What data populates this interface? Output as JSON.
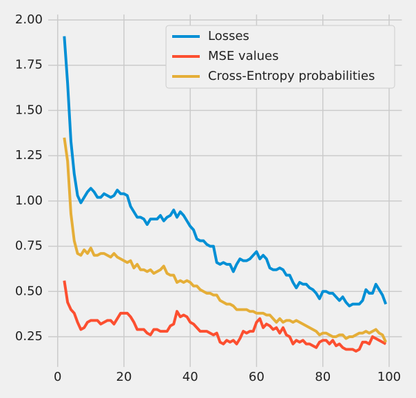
{
  "chart_data": {
    "type": "line",
    "x": [
      2,
      3,
      4,
      5,
      6,
      7,
      8,
      9,
      10,
      11,
      12,
      13,
      14,
      15,
      16,
      17,
      18,
      19,
      20,
      21,
      22,
      23,
      24,
      25,
      26,
      27,
      28,
      29,
      30,
      31,
      32,
      33,
      34,
      35,
      36,
      37,
      38,
      39,
      40,
      41,
      42,
      43,
      44,
      45,
      46,
      47,
      48,
      49,
      50,
      51,
      52,
      53,
      54,
      55,
      56,
      57,
      58,
      59,
      60,
      61,
      62,
      63,
      64,
      65,
      66,
      67,
      68,
      69,
      70,
      71,
      72,
      73,
      74,
      75,
      76,
      77,
      78,
      79,
      80,
      81,
      82,
      83,
      84,
      85,
      86,
      87,
      88,
      89,
      90,
      91,
      92,
      93,
      94,
      95,
      96,
      97,
      98,
      99
    ],
    "series": [
      {
        "name": "Losses",
        "color": "#008fd5",
        "values": [
          1.91,
          1.65,
          1.33,
          1.15,
          1.03,
          0.99,
          1.02,
          1.05,
          1.07,
          1.05,
          1.02,
          1.02,
          1.04,
          1.03,
          1.02,
          1.03,
          1.06,
          1.04,
          1.04,
          1.03,
          0.97,
          0.94,
          0.91,
          0.91,
          0.9,
          0.87,
          0.9,
          0.9,
          0.9,
          0.92,
          0.89,
          0.91,
          0.92,
          0.95,
          0.91,
          0.94,
          0.92,
          0.89,
          0.86,
          0.84,
          0.79,
          0.78,
          0.78,
          0.76,
          0.75,
          0.75,
          0.66,
          0.65,
          0.66,
          0.65,
          0.65,
          0.61,
          0.65,
          0.68,
          0.67,
          0.67,
          0.68,
          0.7,
          0.72,
          0.68,
          0.7,
          0.68,
          0.63,
          0.62,
          0.62,
          0.63,
          0.62,
          0.59,
          0.59,
          0.55,
          0.52,
          0.55,
          0.54,
          0.54,
          0.52,
          0.51,
          0.49,
          0.46,
          0.5,
          0.5,
          0.49,
          0.49,
          0.47,
          0.45,
          0.47,
          0.44,
          0.42,
          0.43,
          0.43,
          0.43,
          0.45,
          0.51,
          0.49,
          0.49,
          0.54,
          0.51,
          0.48,
          0.43
        ]
      },
      {
        "name": "MSE values",
        "color": "#fc4f30",
        "values": [
          0.56,
          0.44,
          0.4,
          0.38,
          0.33,
          0.29,
          0.3,
          0.33,
          0.34,
          0.34,
          0.34,
          0.32,
          0.33,
          0.34,
          0.34,
          0.32,
          0.35,
          0.38,
          0.38,
          0.38,
          0.36,
          0.33,
          0.29,
          0.29,
          0.29,
          0.27,
          0.26,
          0.29,
          0.29,
          0.28,
          0.28,
          0.28,
          0.31,
          0.32,
          0.39,
          0.36,
          0.37,
          0.36,
          0.33,
          0.32,
          0.3,
          0.28,
          0.28,
          0.28,
          0.27,
          0.26,
          0.27,
          0.22,
          0.21,
          0.23,
          0.22,
          0.23,
          0.21,
          0.24,
          0.28,
          0.27,
          0.28,
          0.28,
          0.33,
          0.35,
          0.3,
          0.32,
          0.31,
          0.29,
          0.3,
          0.27,
          0.3,
          0.26,
          0.25,
          0.21,
          0.23,
          0.22,
          0.23,
          0.21,
          0.21,
          0.2,
          0.19,
          0.22,
          0.23,
          0.23,
          0.21,
          0.23,
          0.2,
          0.21,
          0.19,
          0.18,
          0.18,
          0.18,
          0.17,
          0.18,
          0.22,
          0.22,
          0.21,
          0.25,
          0.24,
          0.23,
          0.22,
          0.21
        ]
      },
      {
        "name": "Cross-Entropy probabilities",
        "color": "#e5ae38",
        "values": [
          1.35,
          1.22,
          0.93,
          0.78,
          0.71,
          0.7,
          0.73,
          0.71,
          0.74,
          0.7,
          0.7,
          0.71,
          0.71,
          0.7,
          0.69,
          0.71,
          0.69,
          0.68,
          0.67,
          0.66,
          0.67,
          0.63,
          0.65,
          0.62,
          0.62,
          0.61,
          0.62,
          0.6,
          0.61,
          0.62,
          0.64,
          0.6,
          0.59,
          0.59,
          0.55,
          0.56,
          0.55,
          0.56,
          0.55,
          0.53,
          0.53,
          0.51,
          0.5,
          0.49,
          0.49,
          0.48,
          0.48,
          0.45,
          0.44,
          0.43,
          0.43,
          0.42,
          0.4,
          0.4,
          0.4,
          0.4,
          0.39,
          0.39,
          0.38,
          0.38,
          0.38,
          0.37,
          0.37,
          0.35,
          0.33,
          0.35,
          0.33,
          0.34,
          0.34,
          0.33,
          0.34,
          0.33,
          0.32,
          0.31,
          0.3,
          0.29,
          0.28,
          0.26,
          0.27,
          0.27,
          0.26,
          0.25,
          0.25,
          0.26,
          0.26,
          0.24,
          0.25,
          0.25,
          0.26,
          0.27,
          0.27,
          0.28,
          0.27,
          0.28,
          0.29,
          0.27,
          0.26,
          0.22
        ]
      }
    ],
    "xlim": [
      -2.85,
      103.85
    ],
    "xticks": [
      0,
      20,
      40,
      60,
      80,
      100
    ],
    "ylim": [
      0.083,
      2.03
    ],
    "yticks": [
      0.25,
      {
        "value": 0.5,
        "label": "0.50"
      },
      0.75,
      {
        "value": 1.0,
        "label": "1.00"
      },
      1.25,
      {
        "value": 1.5,
        "label": "1.50"
      },
      1.75,
      {
        "value": 2.0,
        "label": "2.00"
      }
    ],
    "grid": true,
    "legend": "upper right"
  }
}
